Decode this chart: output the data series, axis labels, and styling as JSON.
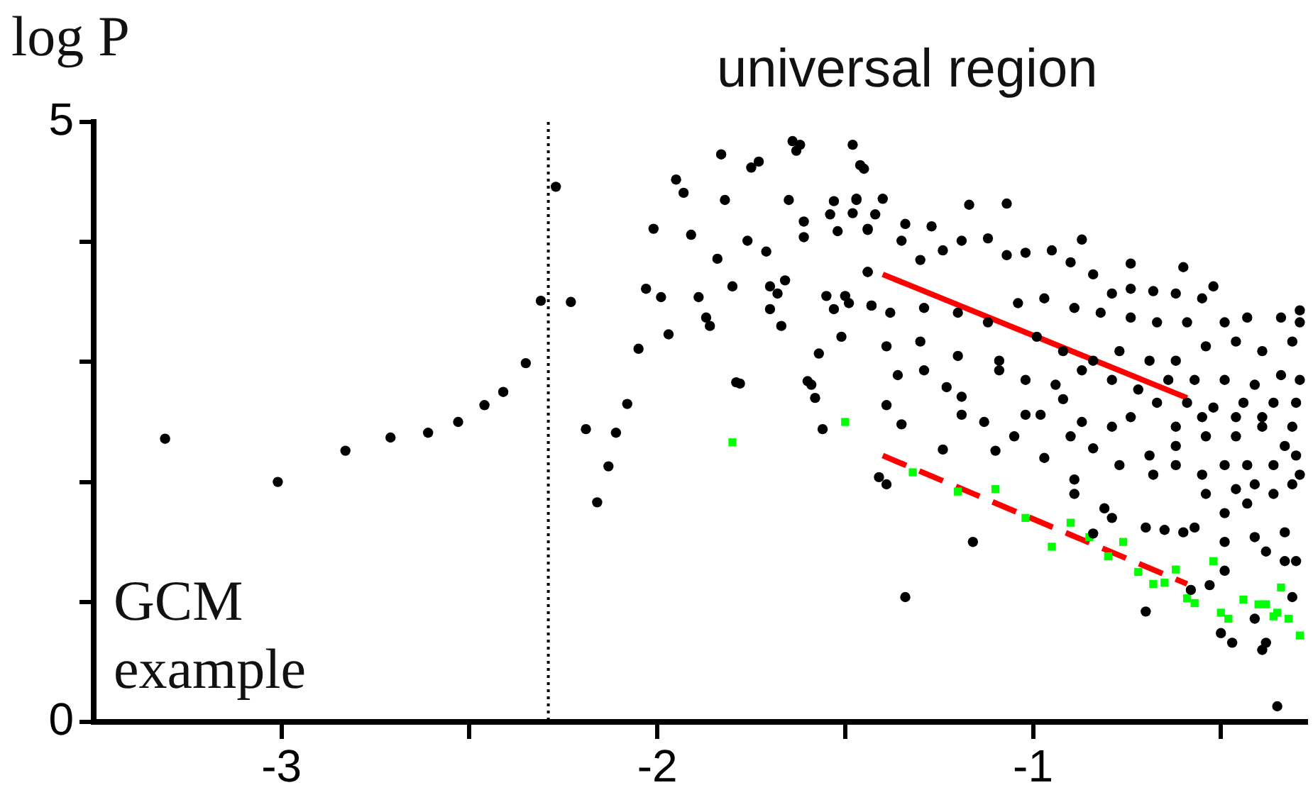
{
  "chart_data": {
    "type": "scatter",
    "ylabel": "log P",
    "annotations": [
      "universal region",
      "GCM example"
    ],
    "xlim": [
      -3.5,
      -0.27
    ],
    "ylim": [
      0,
      5
    ],
    "xticks": [
      -3,
      {
        "value": -2.5,
        "label": null
      },
      -2,
      {
        "value": -1.5,
        "label": null
      },
      -1,
      {
        "value": -0.5,
        "label": null
      }
    ],
    "yticks": [
      0,
      {
        "value": 1,
        "label": null
      },
      {
        "value": 2,
        "label": null
      },
      {
        "value": 3,
        "label": null
      },
      {
        "value": 4,
        "label": null
      },
      5
    ],
    "ref_lines": [
      {
        "axis": "x",
        "value": -2.29,
        "color": "#000000",
        "line_style": "dotted"
      }
    ],
    "series": [
      {
        "type": "scatter",
        "color": "#000000",
        "marker": "circle",
        "x": [
          -3.31,
          -3.01,
          -2.83,
          -2.71,
          -2.61,
          -2.53,
          -2.46,
          -2.41,
          -2.35,
          -2.31,
          -2.27,
          -2.23,
          -2.19,
          -2.16,
          -2.13,
          -2.11,
          -2.08,
          -2.05,
          -2.03,
          -2.01,
          -1.99,
          -1.97,
          -1.95,
          -1.93,
          -1.91,
          -1.89,
          -1.87,
          -1.86,
          -1.84,
          -1.83,
          -1.82,
          -1.8,
          -1.79,
          -1.78,
          -1.76,
          -1.75,
          -1.73,
          -1.71,
          -1.7,
          -1.7,
          -1.68,
          -1.67,
          -1.66,
          -1.65,
          -1.64,
          -1.63,
          -1.62,
          -1.61,
          -1.61,
          -1.6,
          -1.59,
          -1.58,
          -1.57,
          -1.56,
          -1.55,
          -1.54,
          -1.53,
          -1.53,
          -1.52,
          -1.51,
          -1.5,
          -1.49,
          -1.48,
          -1.48,
          -1.47,
          -1.46,
          -1.45,
          -1.44,
          -1.44,
          -1.43,
          -1.47,
          -1.4,
          -1.42,
          -1.44,
          -1.34,
          -1.27,
          -1.17,
          -1.07,
          -0.87,
          -0.74,
          -0.6,
          -0.52,
          -0.29,
          -1.35,
          -1.3,
          -1.24,
          -1.19,
          -1.12,
          -1.07,
          -1.02,
          -0.95,
          -0.9,
          -0.84,
          -0.79,
          -0.74,
          -0.68,
          -0.62,
          -0.55,
          -1.44,
          -1.38,
          -1.43,
          -1.29,
          -1.2,
          -1.12,
          -1.04,
          -0.97,
          -0.89,
          -0.82,
          -0.74,
          -0.67,
          -0.59,
          -0.49,
          -0.43,
          -0.34,
          -0.29,
          -1.39,
          -1.3,
          -1.2,
          -1.09,
          -0.99,
          -0.92,
          -0.84,
          -0.77,
          -0.69,
          -0.62,
          -0.54,
          -0.46,
          -0.39,
          -0.31,
          -1.36,
          -1.29,
          -1.23,
          -1.19,
          -1.09,
          -1.02,
          -0.94,
          -0.87,
          -0.79,
          -0.72,
          -0.64,
          -0.57,
          -0.49,
          -0.41,
          -0.34,
          -0.29,
          -1.39,
          -1.19,
          -1.13,
          -1.05,
          -1.02,
          -0.98,
          -0.92,
          -0.9,
          -0.87,
          -0.84,
          -0.79,
          -0.74,
          -0.67,
          -0.59,
          -0.52,
          -0.44,
          -0.36,
          -0.3,
          -1.35,
          -1.24,
          -1.1,
          -0.97,
          -0.89,
          -0.77,
          -0.69,
          -0.62,
          -0.54,
          -0.46,
          -0.39,
          -0.31,
          -1.41,
          -1.39,
          -0.89,
          -0.81,
          -0.79,
          -0.7,
          -0.65,
          -0.6,
          -0.57,
          -0.49,
          -0.43,
          -0.36,
          -0.31,
          -0.29,
          -1.16,
          -0.84,
          -0.49,
          -0.41,
          -0.38,
          -0.33,
          -0.33,
          -0.3,
          -1.34,
          -0.7,
          -0.58,
          -0.53,
          -0.49,
          -0.41,
          -0.31,
          -0.5,
          -0.47,
          -0.38,
          -0.39,
          -0.35,
          -0.68,
          -0.62,
          -0.55,
          -0.49,
          -0.43,
          -0.36,
          -0.3,
          -0.62,
          -0.55,
          -0.46,
          -0.39,
          -0.33,
          -0.41,
          -0.54,
          -0.46
        ],
        "values": [
          2.36,
          2.0,
          2.26,
          2.37,
          2.41,
          2.5,
          2.64,
          2.75,
          2.99,
          3.51,
          4.46,
          3.5,
          2.44,
          1.83,
          2.13,
          2.41,
          2.65,
          3.11,
          3.61,
          4.11,
          3.54,
          3.23,
          4.52,
          4.41,
          4.06,
          3.54,
          3.37,
          3.3,
          3.86,
          4.73,
          4.35,
          3.63,
          2.83,
          2.82,
          4.01,
          4.62,
          4.67,
          3.92,
          3.63,
          3.44,
          3.57,
          3.3,
          3.68,
          4.35,
          4.84,
          4.76,
          4.81,
          4.04,
          4.17,
          2.84,
          2.81,
          2.7,
          3.07,
          2.44,
          3.55,
          4.23,
          3.44,
          4.34,
          4.09,
          3.21,
          3.55,
          3.49,
          4.24,
          4.81,
          4.36,
          4.64,
          4.61,
          4.1,
          3.75,
          3.47,
          4.35,
          4.36,
          4.23,
          4.11,
          4.15,
          4.13,
          4.31,
          4.32,
          4.02,
          3.82,
          3.79,
          3.63,
          3.43,
          4.01,
          3.85,
          3.93,
          4.01,
          4.03,
          3.89,
          3.91,
          3.93,
          3.83,
          3.73,
          3.57,
          3.61,
          3.59,
          3.57,
          3.53,
          3.75,
          3.41,
          3.47,
          3.45,
          3.41,
          3.33,
          3.49,
          3.53,
          3.45,
          3.41,
          3.37,
          3.33,
          3.33,
          3.33,
          3.37,
          3.37,
          3.33,
          3.13,
          3.17,
          3.05,
          2.93,
          3.21,
          3.09,
          3.01,
          3.09,
          3.01,
          3.01,
          3.13,
          3.17,
          3.09,
          3.17,
          2.89,
          2.93,
          2.79,
          2.71,
          3.01,
          2.85,
          2.81,
          2.93,
          2.85,
          2.77,
          2.85,
          2.85,
          2.85,
          2.81,
          2.89,
          2.85,
          2.64,
          2.56,
          2.5,
          2.38,
          2.56,
          2.56,
          2.69,
          2.38,
          2.5,
          2.28,
          2.46,
          2.54,
          2.66,
          2.66,
          2.62,
          2.66,
          2.66,
          2.66,
          2.48,
          2.27,
          2.26,
          2.2,
          2.02,
          2.14,
          2.22,
          2.3,
          2.38,
          2.38,
          2.46,
          2.46,
          2.04,
          1.98,
          1.9,
          1.78,
          1.7,
          1.62,
          1.6,
          1.58,
          1.62,
          1.74,
          1.82,
          1.9,
          1.98,
          2.06,
          1.5,
          1.57,
          1.5,
          1.54,
          1.42,
          1.58,
          1.34,
          1.34,
          1.04,
          0.92,
          1.1,
          1.14,
          1.26,
          0.86,
          1.04,
          0.74,
          0.66,
          0.66,
          0.6,
          0.13,
          2.06,
          2.14,
          2.06,
          2.14,
          2.14,
          2.14,
          2.22,
          2.46,
          2.54,
          2.54,
          2.54,
          2.3,
          1.98,
          1.9,
          1.94
        ]
      },
      {
        "type": "scatter",
        "color": "#00ff00",
        "marker": "square",
        "x": [
          -1.8,
          -1.5,
          -1.32,
          -1.2,
          -1.1,
          -1.02,
          -0.95,
          -0.9,
          -0.85,
          -0.8,
          -0.76,
          -0.72,
          -0.68,
          -0.65,
          -0.62,
          -0.59,
          -0.57,
          -0.52,
          -0.5,
          -0.48,
          -0.44,
          -0.4,
          -0.38,
          -0.36,
          -0.35,
          -0.34,
          -0.32,
          -0.29
        ],
        "values": [
          2.33,
          2.5,
          2.08,
          1.92,
          1.94,
          1.7,
          1.46,
          1.66,
          1.54,
          1.38,
          1.5,
          1.25,
          1.15,
          1.16,
          1.27,
          1.03,
          0.99,
          1.34,
          0.91,
          0.86,
          1.02,
          0.98,
          0.98,
          0.88,
          0.91,
          1.12,
          0.86,
          0.72
        ]
      },
      {
        "type": "line",
        "color": "#ff0000",
        "line_style": "solid",
        "marker": "none",
        "x": [
          -1.4,
          -0.59
        ],
        "values": [
          3.73,
          2.7
        ]
      },
      {
        "type": "line",
        "color": "#ff0000",
        "line_style": "dashed",
        "marker": "none",
        "x": [
          -1.4,
          -0.59
        ],
        "values": [
          2.22,
          1.15
        ]
      }
    ]
  }
}
